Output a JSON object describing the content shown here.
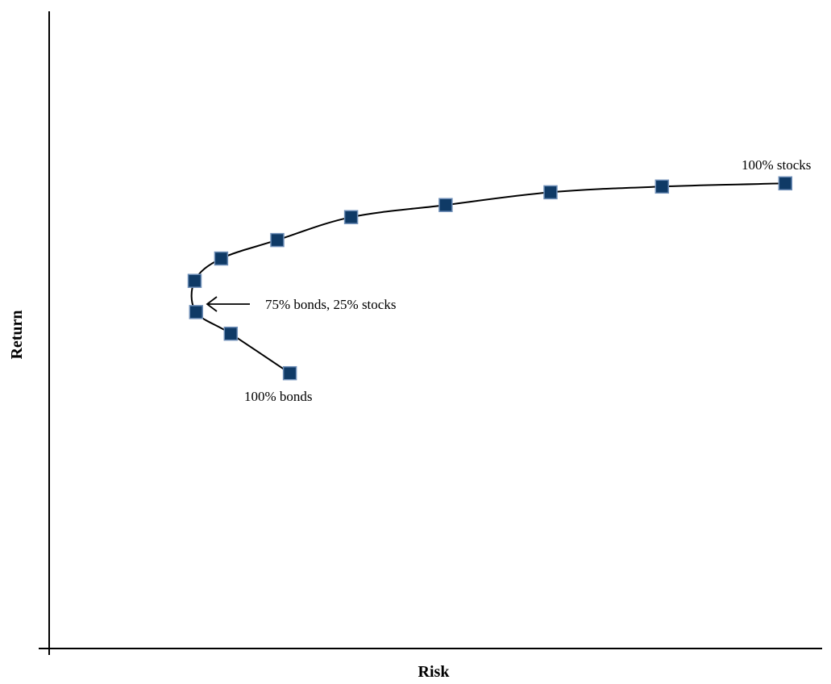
{
  "chart_data": {
    "type": "scatter",
    "title": "",
    "xlabel": "Risk",
    "ylabel": "Return",
    "xlim": [
      0,
      100
    ],
    "ylim": [
      0,
      100
    ],
    "ticks": "none",
    "grid": false,
    "legend": "none",
    "series": [
      {
        "points": [
          {
            "x": 32.6,
            "y": 43.2
          },
          {
            "x": 24.6,
            "y": 49.4
          },
          {
            "x": 19.9,
            "y": 52.8
          },
          {
            "x": 19.7,
            "y": 57.7
          },
          {
            "x": 23.3,
            "y": 61.2
          },
          {
            "x": 30.9,
            "y": 64.1
          },
          {
            "x": 40.9,
            "y": 67.7
          },
          {
            "x": 53.7,
            "y": 69.6
          },
          {
            "x": 67.9,
            "y": 71.6
          },
          {
            "x": 83.0,
            "y": 72.5
          },
          {
            "x": 99.7,
            "y": 73.0
          }
        ]
      }
    ],
    "annotations": {
      "stocks_label": "100% stocks",
      "bonds_label": "100% bonds",
      "mix_label": "75% bonds, 25% stocks"
    },
    "colors": {
      "marker": "#0f3a66",
      "curve": "#000000",
      "axis": "#000000"
    }
  }
}
